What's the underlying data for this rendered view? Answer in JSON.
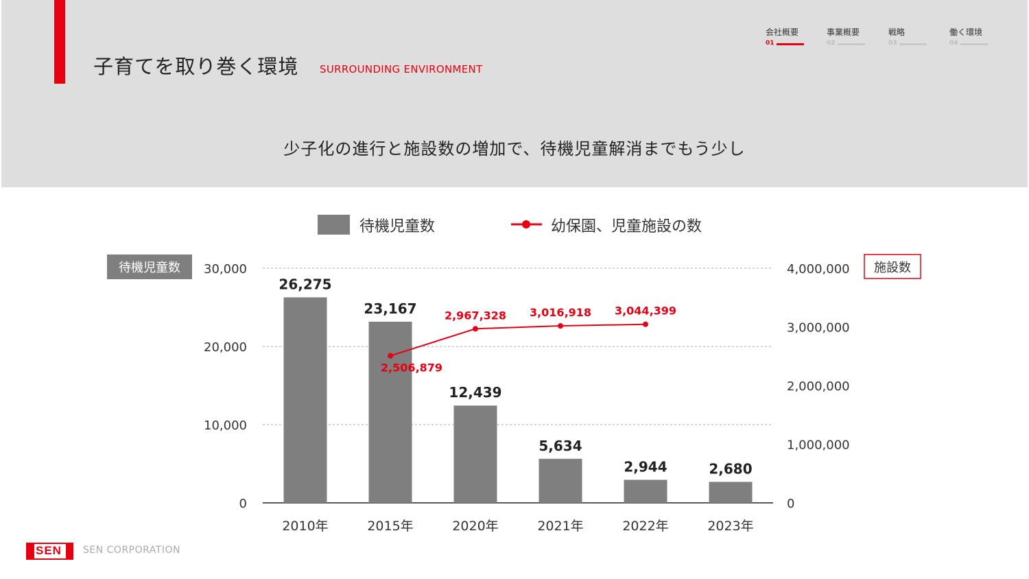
{
  "header": {
    "title": "子育てを取り巻く環境",
    "title_en": "SURROUNDING ENVIRONMENT",
    "subtitle": "少子化の進行と施設数の増加で、待機児童解消までもう少し"
  },
  "nav": [
    {
      "label": "会社概要",
      "num": "01",
      "active": true
    },
    {
      "label": "事業概要",
      "num": "02",
      "active": false
    },
    {
      "label": "戦略",
      "num": "03",
      "active": false
    },
    {
      "label": "働く環境",
      "num": "04",
      "active": false
    }
  ],
  "footer": {
    "logo": "SEN",
    "company": "SEN CORPORATION"
  },
  "colors": {
    "accent": "#e60012",
    "bar": "#7f7f7f",
    "header_bg": "#dedede"
  },
  "chart_data": {
    "type": "bar",
    "categories": [
      "2010年",
      "2015年",
      "2020年",
      "2021年",
      "2022年",
      "2023年"
    ],
    "series": [
      {
        "name": "待機児童数",
        "type": "bar",
        "axis": "left",
        "values": [
          26275,
          23167,
          12439,
          5634,
          2944,
          2680
        ],
        "labels": [
          "26,275",
          "23,167",
          "12,439",
          "5,634",
          "2,944",
          "2,680"
        ]
      },
      {
        "name": "幼保園、児童施設の数",
        "type": "line",
        "axis": "right",
        "values": [
          null,
          2506879,
          2967328,
          3016918,
          3044399,
          null
        ],
        "labels": [
          "",
          "2,506,879",
          "2,967,328",
          "3,016,918",
          "3,044,399",
          ""
        ]
      }
    ],
    "y_left": {
      "label": "待機児童数",
      "ylim": [
        0,
        30000
      ],
      "ticks": [
        0,
        10000,
        20000,
        30000
      ],
      "tick_labels": [
        "0",
        "10,000",
        "20,000",
        "30,000"
      ]
    },
    "y_right": {
      "label": "施設数",
      "ylim": [
        0,
        4000000
      ],
      "ticks": [
        0,
        1000000,
        2000000,
        3000000,
        4000000
      ],
      "tick_labels": [
        "0",
        "1,000,000",
        "2,000,000",
        "3,000,000",
        "4,000,000"
      ]
    },
    "grid": true,
    "legend": "top-center"
  }
}
